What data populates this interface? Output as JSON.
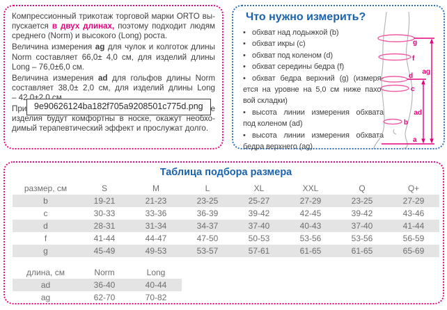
{
  "colors": {
    "accent_magenta": "#e5097f",
    "accent_blue": "#2e6fb7",
    "heading_blue": "#1b62ad",
    "body_text": "#3f3e3e",
    "table_text": "#6d6e71",
    "row_band_gray": "#e4e4e4",
    "diagram_pink": "#e6007e",
    "leg_outline_gray": "#b0b2b4"
  },
  "tooltip": {
    "text": "9e90626124ba182f705a9208501c775d.png"
  },
  "info_box": {
    "paragraphs": [
      {
        "lines": [
          {
            "j": true,
            "seg": [
              {
                "t": "Компрессионный трикотаж торговой марки ORTO вы-"
              }
            ]
          },
          {
            "j": true,
            "seg": [
              {
                "t": "пускается "
              },
              {
                "t": "в двух длинах,",
                "s": "bm"
              },
              {
                "t": " поэтому подходит людям"
              }
            ]
          },
          {
            "j": false,
            "seg": [
              {
                "t": "среднего (Norm) и высокого (Long) роста."
              }
            ]
          }
        ]
      },
      {
        "lines": [
          {
            "j": true,
            "seg": [
              {
                "t": "Величина измерения "
              },
              {
                "t": "ag",
                "s": "b"
              },
              {
                "t": " для чулок и колготок длины"
              }
            ]
          },
          {
            "j": true,
            "seg": [
              {
                "t": "Norm составляет 66,0± 4,0 см, для изделий длины"
              }
            ]
          },
          {
            "j": false,
            "seg": [
              {
                "t": "Long – 76,0±6,0 см."
              }
            ]
          }
        ]
      },
      {
        "lines": [
          {
            "j": true,
            "seg": [
              {
                "t": "Величина измерения "
              },
              {
                "t": "ad",
                "s": "b"
              },
              {
                "t": " для гольфов длины Norm"
              }
            ]
          },
          {
            "j": true,
            "seg": [
              {
                "t": "составляет 38,0± 2,0 см, для изделий длины Long"
              }
            ]
          },
          {
            "j": false,
            "seg": [
              {
                "t": "– 42,0±2,0 см."
              }
            ]
          }
        ]
      },
      {
        "lines": [
          {
            "j": true,
            "seg": [
              {
                "t": "При правильном подборе размера компрессионные"
              }
            ]
          },
          {
            "j": true,
            "seg": [
              {
                "t": "изделия будут комфортны в носке, окажут необхо-"
              }
            ]
          },
          {
            "j": false,
            "seg": [
              {
                "t": "димый терапевтический эффект и прослужат долго."
              }
            ]
          }
        ]
      }
    ]
  },
  "measure_box": {
    "title": "Что нужно измерить?",
    "items": [
      {
        "lines": [
          {
            "t": "обхват над лодыжкой (b)",
            "dot": true,
            "j": false
          }
        ]
      },
      {
        "lines": [
          {
            "t": "обхват икры (c)",
            "dot": true,
            "j": false
          }
        ]
      },
      {
        "lines": [
          {
            "t": "обхват под коленом (d)",
            "dot": true,
            "j": false
          }
        ]
      },
      {
        "lines": [
          {
            "t": "обхват середины бедра (f)",
            "dot": true,
            "j": false
          }
        ]
      },
      {
        "lines": [
          {
            "t": "обхват бедра верхний (g) (измеря-",
            "dot": true,
            "j": true
          },
          {
            "t": "ется на уровне на 5,0 см ниже пахо-",
            "dot": false,
            "j": true
          },
          {
            "t": "вой складки)",
            "dot": false,
            "j": false
          }
        ]
      },
      {
        "lines": [
          {
            "t": "высота линии измерения обхвата",
            "dot": true,
            "j": true
          },
          {
            "t": "под коленом (ad)",
            "dot": false,
            "j": false
          }
        ]
      },
      {
        "lines": [
          {
            "t": "высота линии измерения обхвата",
            "dot": true,
            "j": true
          },
          {
            "t": "бедра верхнего (ag)",
            "dot": false,
            "j": false
          }
        ]
      }
    ]
  },
  "diagram": {
    "labels": {
      "a": "a",
      "b": "b",
      "c": "c",
      "d": "d",
      "f": "f",
      "g": "g",
      "ad": "ad",
      "ag": "ag"
    }
  },
  "size_table": {
    "title": "Таблица подбора размера",
    "header": [
      "размер, см",
      "S",
      "M",
      "L",
      "XL",
      "XXL",
      "Q",
      "Q+"
    ],
    "rows": [
      {
        "label": "b",
        "gray": true,
        "values": [
          "19-21",
          "21-23",
          "23-25",
          "25-27",
          "27-29",
          "23-25",
          "27-29"
        ]
      },
      {
        "label": "c",
        "gray": false,
        "values": [
          "30-33",
          "33-36",
          "36-39",
          "39-42",
          "42-45",
          "39-42",
          "43-46"
        ]
      },
      {
        "label": "d",
        "gray": true,
        "values": [
          "28-31",
          "31-34",
          "34-37",
          "37-40",
          "40-43",
          "37-40",
          "41-44"
        ]
      },
      {
        "label": "f",
        "gray": false,
        "values": [
          "41-44",
          "44-47",
          "47-50",
          "50-53",
          "53-56",
          "53-56",
          "56-59"
        ]
      },
      {
        "label": "g",
        "gray": true,
        "values": [
          "45-49",
          "49-53",
          "53-57",
          "57-61",
          "61-65",
          "61-65",
          "65-69"
        ]
      }
    ]
  },
  "length_table": {
    "header": [
      "длина, см",
      "Norm",
      "Long"
    ],
    "rows": [
      {
        "label": "ad",
        "gray": true,
        "values": [
          "36-40",
          "40-44"
        ]
      },
      {
        "label": "ag",
        "gray": false,
        "values": [
          "62-70",
          "70-82"
        ]
      }
    ]
  }
}
